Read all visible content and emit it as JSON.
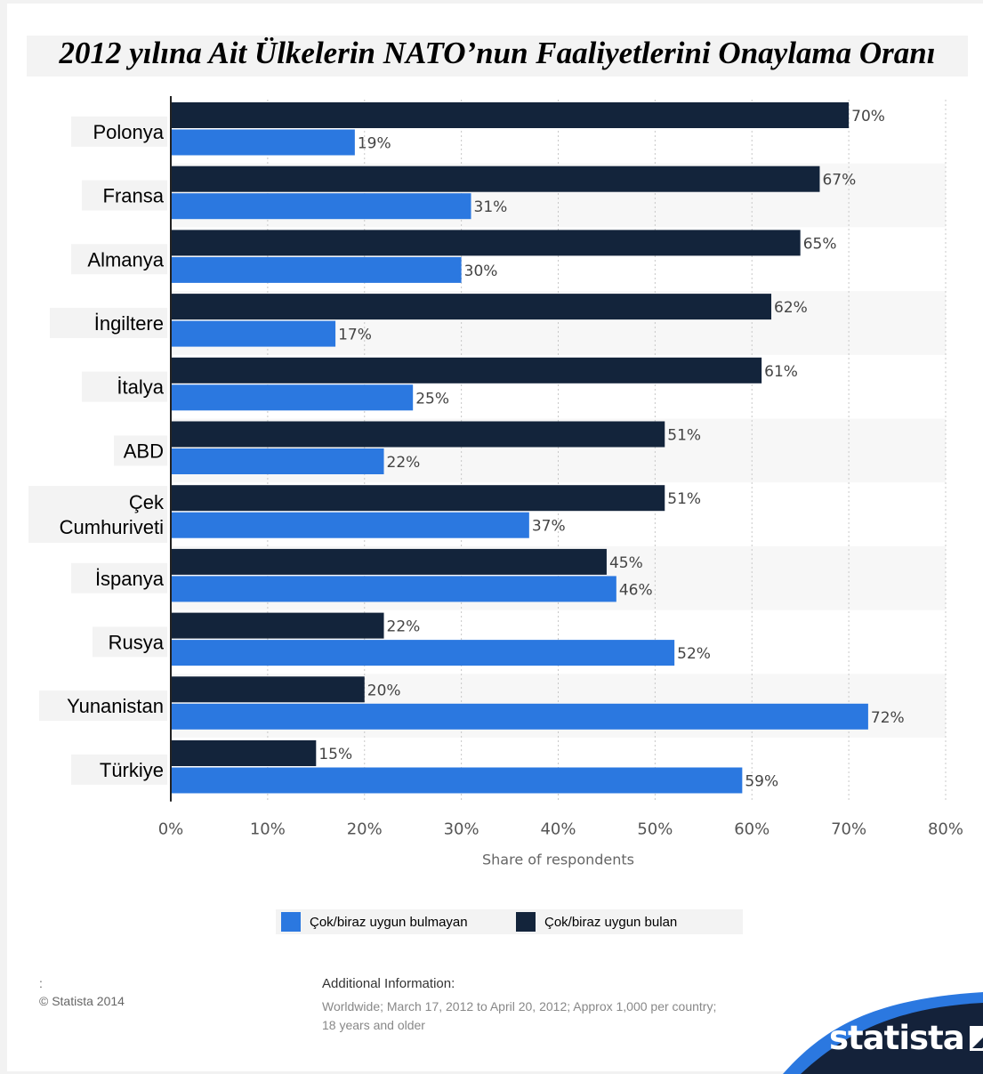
{
  "title": "2012 yılına Ait Ülkelerin NATO’nun Faaliyetlerini Onaylama Oranı",
  "chart_data": {
    "type": "bar",
    "orientation": "horizontal",
    "categories": [
      "Polonya",
      "Fransa",
      "Almanya",
      "İngiltere",
      "İtalya",
      "ABD",
      "Çek Cumhuriveti",
      "İspanya",
      "Rusya",
      "Yunanistan",
      "Türkiye"
    ],
    "series": [
      {
        "name": "Çok/biraz uygun bulan",
        "color": "#13243b",
        "values": [
          70,
          67,
          65,
          62,
          61,
          51,
          51,
          45,
          22,
          20,
          15
        ]
      },
      {
        "name": "Çok/biraz uygun bulmayan",
        "color": "#2b78e0",
        "values": [
          19,
          31,
          30,
          17,
          25,
          22,
          37,
          46,
          52,
          72,
          59
        ]
      }
    ],
    "value_suffix": "%",
    "xlim": [
      0,
      80
    ],
    "ticks": [
      "0%",
      "10%",
      "20%",
      "30%",
      "40%",
      "50%",
      "60%",
      "70%",
      "80%"
    ],
    "xlabel": "Share of respondents",
    "grid": true,
    "legend": "bottom"
  },
  "legend": [
    {
      "label": "Çok/biraz uygun bulmayan",
      "color": "#2b78e0"
    },
    {
      "label": "Çok/biraz uygun bulan",
      "color": "#13243b"
    }
  ],
  "footer": {
    "colon": ":",
    "copyright": "© Statista 2014",
    "additional_title": "Additional Information:",
    "additional_text": "Worldwide; March 17, 2012 to April 20, 2012; Approx 1,000 per country; 18 years and older"
  },
  "brand": {
    "name": "statista",
    "band_color": "#14223a",
    "accent_color": "#2b78e0"
  }
}
